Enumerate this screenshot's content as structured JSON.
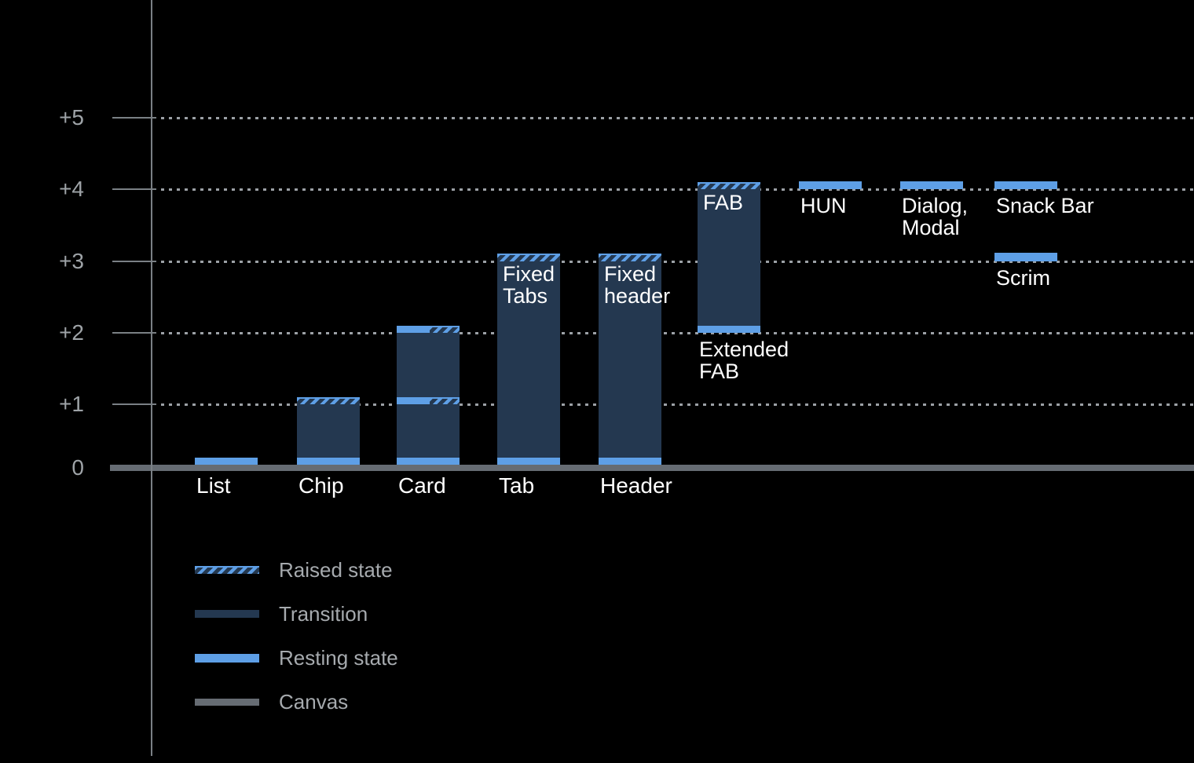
{
  "chart_data": {
    "type": "bar",
    "subtype": "material-elevation-diagram",
    "title": "",
    "xlabel": "",
    "ylabel": "",
    "y_axis": {
      "tick_labels": [
        "+5",
        "+4",
        "+3",
        "+2",
        "+1",
        "0"
      ],
      "tick_values": [
        5,
        4,
        3,
        2,
        1,
        0
      ],
      "range": [
        0,
        5
      ],
      "gridline_style": "dotted"
    },
    "bars": [
      {
        "name": "List",
        "col": 0,
        "x_label": "List",
        "segments": [
          {
            "kind": "resting",
            "from": 0,
            "to": 0.12
          }
        ]
      },
      {
        "name": "Chip",
        "col": 1,
        "x_label": "Chip",
        "segments": [
          {
            "kind": "resting",
            "from": 0,
            "to": 0.12
          },
          {
            "kind": "transition",
            "from": 0.12,
            "to": 1
          },
          {
            "kind": "raised",
            "from": 1,
            "to": 1.1
          }
        ]
      },
      {
        "name": "Card",
        "col": 2,
        "x_label": "Card",
        "segments": [
          {
            "kind": "resting",
            "from": 0,
            "to": 0.12
          },
          {
            "kind": "transition",
            "from": 0.12,
            "to": 1
          },
          {
            "kind": "split",
            "from": 1,
            "to": 1.1
          },
          {
            "kind": "transition",
            "from": 1.1,
            "to": 2
          },
          {
            "kind": "split",
            "from": 2,
            "to": 2.1
          }
        ]
      },
      {
        "name": "Tab",
        "col": 3,
        "x_label": "Tab",
        "inner_label": [
          "Fixed",
          "Tabs"
        ],
        "segments": [
          {
            "kind": "resting",
            "from": 0,
            "to": 0.12
          },
          {
            "kind": "transition",
            "from": 0.12,
            "to": 3
          },
          {
            "kind": "raised",
            "from": 3,
            "to": 3.1
          }
        ]
      },
      {
        "name": "Header",
        "col": 4,
        "x_label": "Header",
        "inner_label": [
          "Fixed",
          "header"
        ],
        "segments": [
          {
            "kind": "resting",
            "from": 0,
            "to": 0.12
          },
          {
            "kind": "transition",
            "from": 0.12,
            "to": 3
          },
          {
            "kind": "raised",
            "from": 3,
            "to": 3.1
          }
        ]
      },
      {
        "name": "Extended FAB",
        "col": 5,
        "inner_label": [
          "FAB"
        ],
        "below_label": [
          "Extended",
          "FAB"
        ],
        "segments": [
          {
            "kind": "resting",
            "from": 2,
            "to": 2.1
          },
          {
            "kind": "transition",
            "from": 2.1,
            "to": 4
          },
          {
            "kind": "raised",
            "from": 4,
            "to": 4.1
          }
        ]
      },
      {
        "name": "HUN",
        "col": 6,
        "below_label": [
          "HUN"
        ],
        "segments": [
          {
            "kind": "resting",
            "from": 4,
            "to": 4.11
          }
        ]
      },
      {
        "name": "Dialog, Modal",
        "col": 7,
        "below_label": [
          "Dialog,",
          "Modal"
        ],
        "segments": [
          {
            "kind": "resting",
            "from": 4,
            "to": 4.11
          }
        ]
      },
      {
        "name": "Snack Bar",
        "col": 8,
        "below_label": [
          "Snack Bar"
        ],
        "segments": [
          {
            "kind": "resting",
            "from": 4,
            "to": 4.11
          }
        ]
      },
      {
        "name": "Scrim",
        "col": 8,
        "below_label": [
          "Scrim"
        ],
        "segments": [
          {
            "kind": "resting",
            "from": 3,
            "to": 3.11
          }
        ]
      }
    ],
    "legend": {
      "position": "bottom-left",
      "items": [
        {
          "swatch": "raised",
          "label": "Raised state"
        },
        {
          "swatch": "transition",
          "label": "Transition"
        },
        {
          "swatch": "resting",
          "label": "Resting state"
        },
        {
          "swatch": "canvas",
          "label": "Canvas"
        }
      ]
    },
    "colors": {
      "background": "#000000",
      "resting_blue": "#5E9FE6",
      "transition_navy": "#243850",
      "canvas_gray": "#666C73",
      "axis_gray": "#7A8085",
      "grid_gray": "#9CA1A6",
      "y_label_gray": "#9EA3A7",
      "bar_label_white": "#FFFFFF",
      "legend_text_gray": "#A6AAAE"
    }
  }
}
